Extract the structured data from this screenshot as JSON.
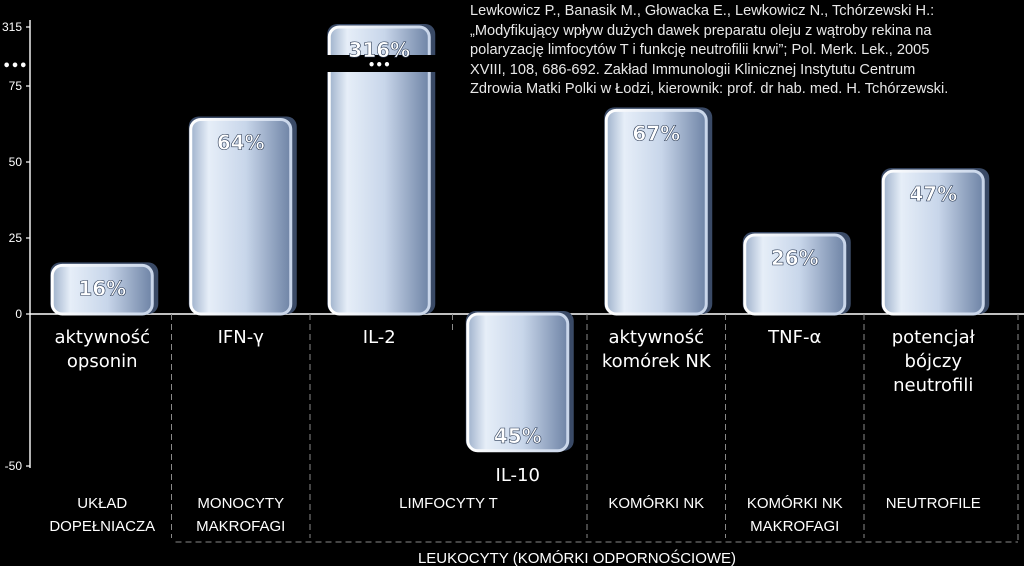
{
  "citation": {
    "lines": [
      "Lewkowicz P., Banasik M., Głowacka E., Lewkowicz N., Tchórzewski H.:",
      "„Modyfikujący wpływ dużych dawek preparatu oleju z wątroby rekina na",
      "polaryzację limfocytów T i funkcję neutrofilii krwi”; Pol. Merk. Lek., 2005",
      "XVIII, 108, 686-692. Zakład Immunologii Klinicznej Instytutu Centrum",
      "Zdrowia Matki Polki w Łodzi, kierownik: prof. dr hab. med. H. Tchórzewski."
    ]
  },
  "chart_data": {
    "type": "bar",
    "ylim": [
      -50,
      75
    ],
    "y_ticks": [
      -50,
      0,
      25,
      50,
      75
    ],
    "y_break": {
      "ellipsis": "•••",
      "top_label": "315"
    },
    "categories": [
      [
        "aktywność",
        "opsonin"
      ],
      [
        "IFN-γ"
      ],
      [
        "IL-2"
      ],
      [
        "IL-10"
      ],
      [
        "aktywność",
        "komórek NK"
      ],
      [
        "TNF-α"
      ],
      [
        "potencjał",
        "bójczy",
        "neutrofili"
      ]
    ],
    "values": [
      16,
      64,
      316,
      -45,
      67,
      26,
      47
    ],
    "value_labels": [
      "16%",
      "64%",
      "316%",
      "45%",
      "67%",
      "26%",
      "47%"
    ],
    "groups": [
      {
        "label": [
          "UKŁAD",
          "DOPEŁNIACZA"
        ],
        "span": [
          0,
          0
        ]
      },
      {
        "label": [
          "MONOCYTY",
          "MAKROFAGI"
        ],
        "span": [
          1,
          1
        ]
      },
      {
        "label": [
          "LIMFOCYTY T"
        ],
        "span": [
          2,
          3
        ]
      },
      {
        "label": [
          "KOMÓRKI NK"
        ],
        "span": [
          4,
          4
        ]
      },
      {
        "label": [
          "KOMÓRKI NK",
          "MAKROFAGI"
        ],
        "span": [
          5,
          5
        ]
      },
      {
        "label": [
          "NEUTROFILE"
        ],
        "span": [
          6,
          6
        ]
      }
    ],
    "supergroup": {
      "label": "LEUKOCYTY (KOMÓRKI ODPORNOŚCIOWE)",
      "span": [
        1,
        6
      ]
    },
    "bar_color": "#c9d9ec",
    "bar_shadow_color": "#3a4a66"
  }
}
